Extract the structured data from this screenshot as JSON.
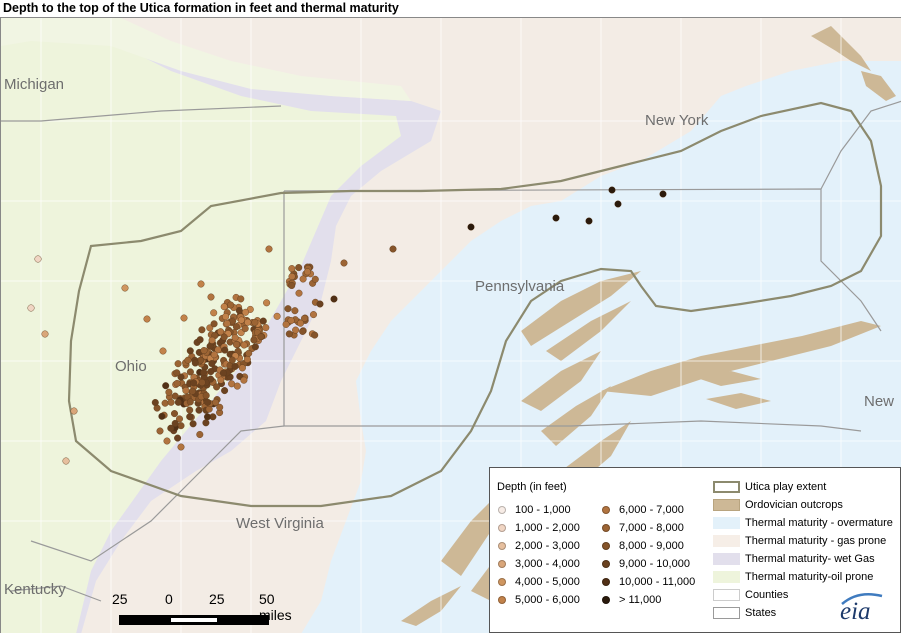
{
  "title": "Depth to the top of the Utica formation in feet and thermal maturity",
  "map_labels": {
    "michigan": "Michigan",
    "new_york": "New York",
    "ohio": "Ohio",
    "pennsylvania": "Pennsylvania",
    "new": "New",
    "west_virginia": "West Virginia",
    "kentucky": "Kentucky"
  },
  "scale_bar": {
    "ticks": [
      "25",
      "0",
      "25",
      "50 miles"
    ]
  },
  "legend": {
    "depth_title": "Depth (in feet)",
    "depth_classes": [
      {
        "label": "100 - 1,000",
        "color": "#f7ece6"
      },
      {
        "label": "1,000 - 2,000",
        "color": "#f0d5c3"
      },
      {
        "label": "2,000 - 3,000",
        "color": "#e6bf9e"
      },
      {
        "label": "3,000 - 4,000",
        "color": "#d9a67a"
      },
      {
        "label": "4,000 - 5,000",
        "color": "#cf9660"
      },
      {
        "label": "5,000 - 6,000",
        "color": "#c2824a"
      },
      {
        "label": "6,000 - 7,000",
        "color": "#b27440"
      },
      {
        "label": "7,000 - 8,000",
        "color": "#9c6434"
      },
      {
        "label": "8,000 - 9,000",
        "color": "#85542a"
      },
      {
        "label": "9,000 - 10,000",
        "color": "#6b4220"
      },
      {
        "label": "10,000 - 11,000",
        "color": "#513016"
      },
      {
        "label": "> 11,000",
        "color": "#2a1a0c"
      }
    ],
    "layers": [
      {
        "label": "Utica play extent",
        "icon": "outline-swatch",
        "color": "#8c8a6e"
      },
      {
        "label": "Ordovician outcrops",
        "icon": "fill-swatch",
        "color": "#cdb896"
      },
      {
        "label": "Thermal maturity - overmature",
        "icon": "fill-swatch",
        "color": "#e3f1fa"
      },
      {
        "label": "Thermal maturity - gas prone",
        "icon": "fill-swatch",
        "color": "#f6eee7"
      },
      {
        "label": "Thermal maturity- wet Gas",
        "icon": "fill-swatch",
        "color": "#e2dfec"
      },
      {
        "label": "Thermal maturity-oil prone",
        "icon": "fill-swatch",
        "color": "#eef4dc"
      },
      {
        "label": "Counties",
        "icon": "line-swatch",
        "color": "#ffffff"
      },
      {
        "label": "States",
        "icon": "line-swatch",
        "color": "#9a9a9a"
      }
    ]
  },
  "logo_text": "eia",
  "colors": {
    "oil_prone": "#eef4dc",
    "wet_gas": "#e2dfec",
    "gas_prone": "#f3ece5",
    "overmature": "#e3f1fa",
    "outcrop": "#cdb896",
    "play_extent": "#8c8a6e",
    "state_line": "#9a9a9a",
    "county_line": "#ffffff"
  }
}
